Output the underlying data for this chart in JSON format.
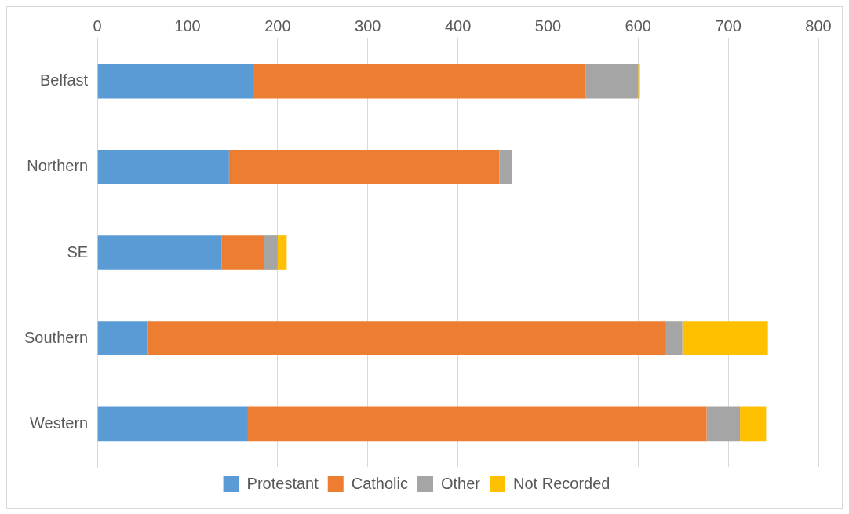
{
  "chart_data": {
    "type": "bar",
    "orientation": "horizontal",
    "stacked": true,
    "categories": [
      "Belfast",
      "Northern",
      "SE",
      "Southern",
      "Western"
    ],
    "series": [
      {
        "name": "Protestant",
        "color": "#5b9bd5",
        "values": [
          173,
          146,
          138,
          55,
          167
        ]
      },
      {
        "name": "Catholic",
        "color": "#ed7d31",
        "values": [
          369,
          300,
          47,
          576,
          509
        ]
      },
      {
        "name": "Other",
        "color": "#a5a5a5",
        "values": [
          58,
          14,
          15,
          18,
          37
        ]
      },
      {
        "name": "Not Recorded",
        "color": "#ffc000",
        "values": [
          2,
          0,
          10,
          95,
          29
        ]
      }
    ],
    "xlim": [
      0,
      800
    ],
    "xticks": [
      0,
      100,
      200,
      300,
      400,
      500,
      600,
      700,
      800
    ],
    "grid": "x",
    "legend": "bottom"
  }
}
